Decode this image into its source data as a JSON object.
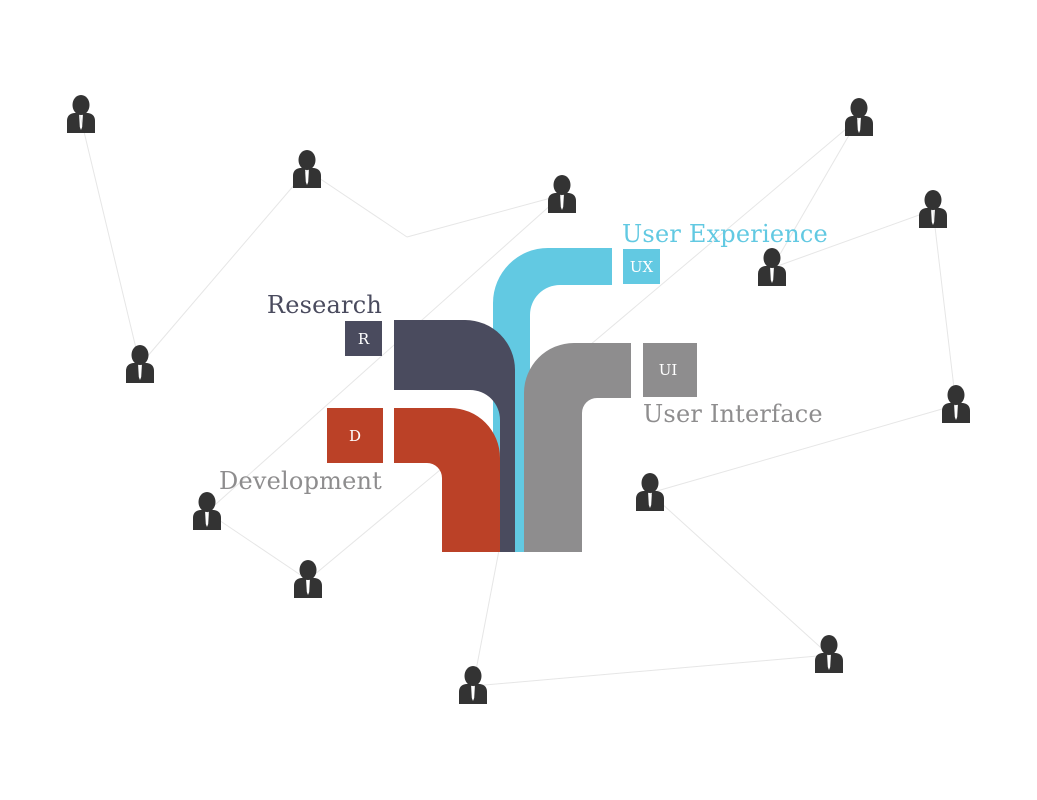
{
  "diagram": {
    "colors": {
      "research": "#4a4b5e",
      "development": "#bb4127",
      "ux": "#62c9e2",
      "ui": "#8e8d8e",
      "person": "#333333",
      "connector": "#e6e6e6"
    },
    "branches": {
      "research": {
        "title": "Research",
        "letter": "R"
      },
      "development": {
        "title": "Development",
        "letter": "D"
      },
      "ux": {
        "title": "User Experience",
        "letter": "UX"
      },
      "ui": {
        "title": "User Interface",
        "letter": "UI"
      }
    },
    "node_icon": "person-icon"
  }
}
